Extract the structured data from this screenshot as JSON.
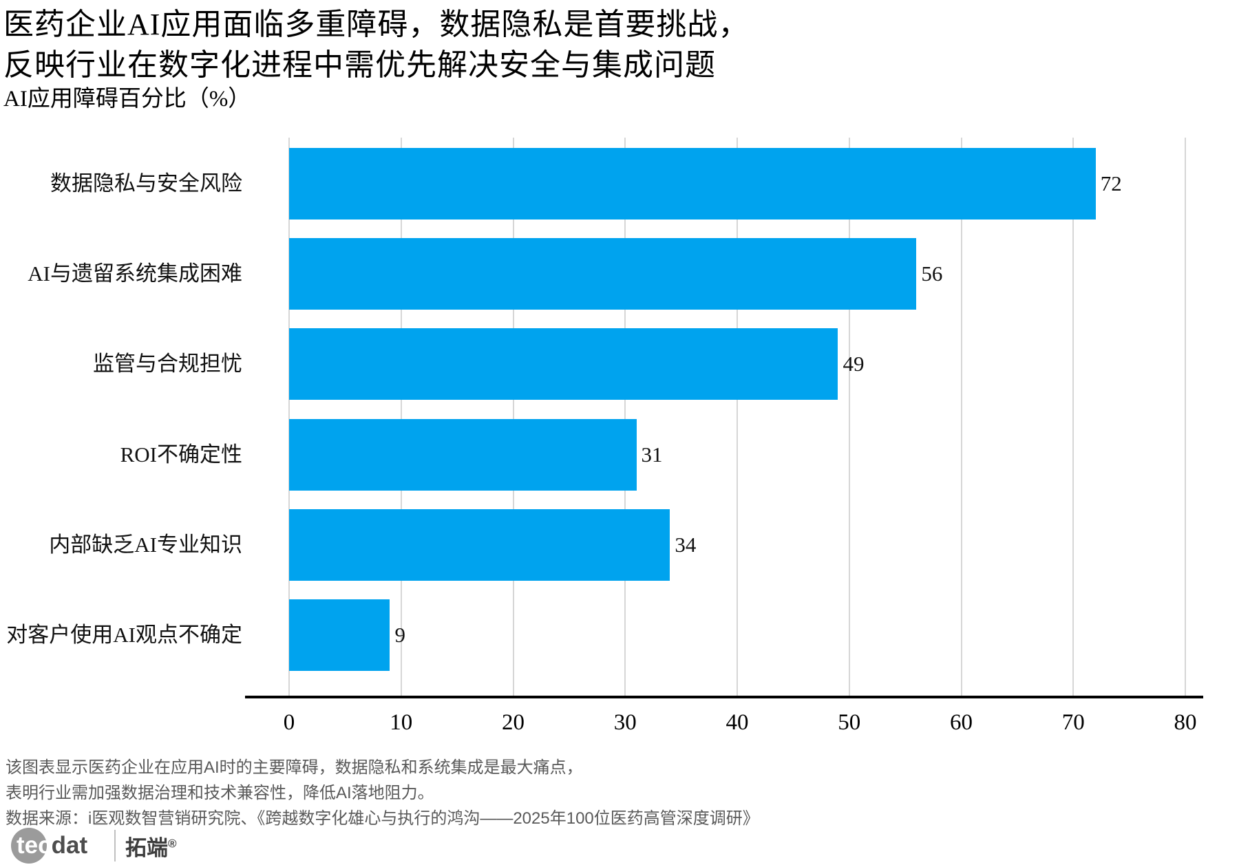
{
  "title": {
    "line1": "医药企业AI应用面临多重障碍，数据隐私是首要挑战，",
    "line2": "反映行业在数字化进程中需优先解决安全与集成问题"
  },
  "subtitle": "AI应用障碍百分比（%）",
  "chart_data": {
    "type": "bar",
    "orientation": "horizontal",
    "title": "医药企业AI应用面临多重障碍，数据隐私是首要挑战，反映行业在数字化进程中需优先解决安全与集成问题",
    "axis_title": "AI应用障碍百分比（%）",
    "categories": [
      "数据隐私与安全风险",
      "AI与遗留系统集成困难",
      "监管与合规担忧",
      "ROI不确定性",
      "内部缺乏AI专业知识",
      "对客户使用AI观点不确定"
    ],
    "values": [
      72,
      56,
      49,
      31,
      34,
      9
    ],
    "xlim": [
      0,
      80
    ],
    "xticks": [
      0,
      10,
      20,
      30,
      40,
      50,
      60,
      70,
      80
    ],
    "grid": true,
    "legend": "none",
    "bar_color": "#00A3EE",
    "gridline_color": "#d6d6d6"
  },
  "footer": {
    "line1": "该图表显示医药企业在应用AI时的主要障碍，数据隐私和系统集成是最大痛点，",
    "line2": "表明行业需加强数据治理和技术兼容性，降低AI落地阻力。",
    "line3": "数据来源：i医观数智营销研究院、《跨越数字化雄心与执行的鸿沟——2025年100位医药高管深度调研》"
  },
  "logo": {
    "tec": "tec",
    "dat": "dat",
    "brand": "拓端",
    "reg": "®"
  }
}
